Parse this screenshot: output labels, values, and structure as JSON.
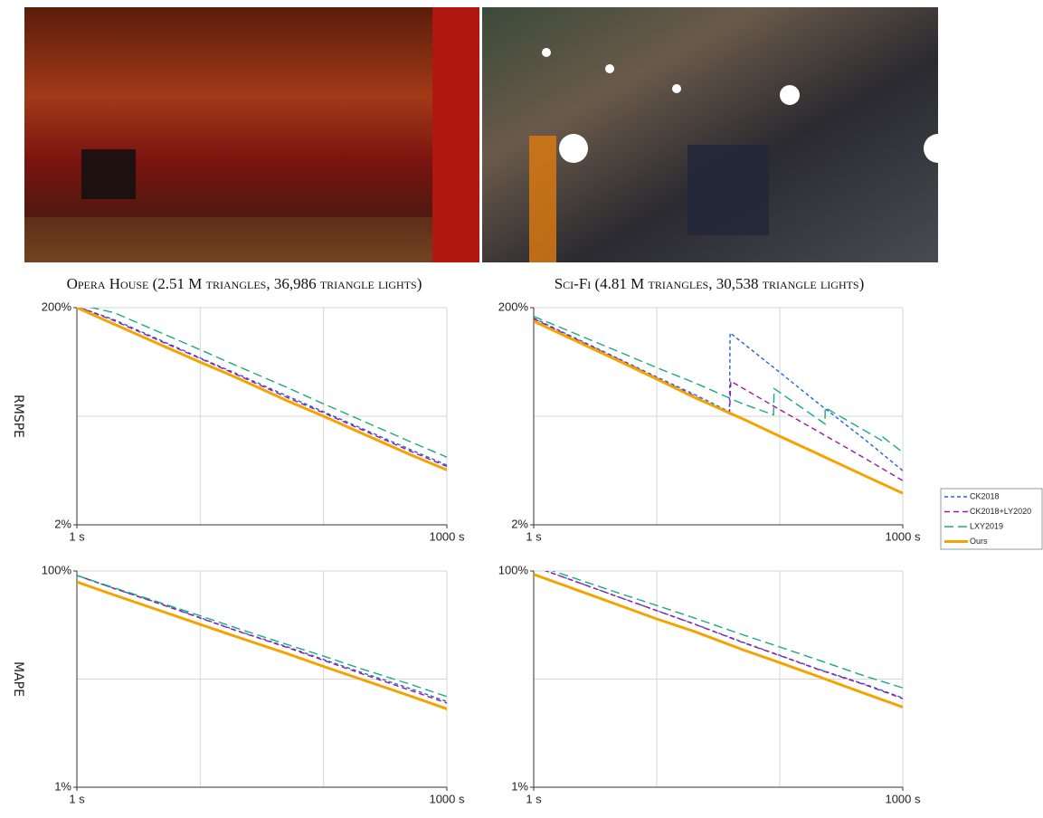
{
  "images": [
    {
      "caption": "Opera House (2.51 M triangles, 36,986 triangle lights)"
    },
    {
      "caption": "Sci-Fi (4.81 M triangles, 30,538 triangle lights)"
    }
  ],
  "chart_data": [
    {
      "type": "line",
      "ylabel": "RMSPE",
      "xlog": true,
      "ylog": true,
      "xlim": [
        1,
        1000
      ],
      "ylim": [
        2,
        200
      ],
      "xticks": [
        {
          "value": 1,
          "label": "1 s"
        },
        {
          "value": 1000,
          "label": "1000 s"
        }
      ],
      "yticks": [
        {
          "value": 2,
          "label": "2%"
        },
        {
          "value": 200,
          "label": "200%"
        }
      ],
      "xgrid": [
        10,
        100
      ],
      "ygrid": [
        20
      ],
      "x": [
        1,
        2,
        5,
        10,
        20,
        50,
        100,
        200,
        500,
        1000
      ],
      "series": [
        {
          "name": "CK2018",
          "color": "#1f66e0",
          "dash": "4,3",
          "width": 1.4,
          "values": [
            205,
            155,
            98,
            69,
            49,
            31,
            22,
            15.6,
            9.9,
            7.1
          ]
        },
        {
          "name": "CK2018+LY2020",
          "color": "#9b1a9b",
          "dash": "6,4",
          "width": 1.4,
          "values": [
            205,
            152,
            96,
            68,
            48,
            30,
            21.5,
            15.2,
            9.6,
            6.9
          ]
        },
        {
          "name": "LXY2019",
          "color": "#1ea882",
          "dash": "10,5",
          "width": 1.4,
          "values": [
            215,
            180,
            115,
            82,
            58,
            37,
            26,
            18.5,
            11.7,
            8.4
          ]
        },
        {
          "name": "Ours",
          "color": "#f5a300",
          "dash": "none",
          "width": 3,
          "values": [
            200,
            141,
            89,
            63,
            45,
            28,
            20,
            14.1,
            8.9,
            6.4
          ]
        }
      ]
    },
    {
      "type": "line",
      "xlog": true,
      "ylog": true,
      "legend": "right",
      "xlim": [
        1,
        1000
      ],
      "ylim": [
        2,
        200
      ],
      "xticks": [
        {
          "value": 1,
          "label": "1 s"
        },
        {
          "value": 1000,
          "label": "1000 s"
        }
      ],
      "yticks": [
        {
          "value": 2,
          "label": "2%"
        },
        {
          "value": 200,
          "label": "200%"
        }
      ],
      "xgrid": [
        10,
        100
      ],
      "ygrid": [
        20
      ],
      "series": [
        {
          "name": "CK2018",
          "color": "#1f66e0",
          "dash": "4,3",
          "width": 1.4,
          "x": [
            1,
            2,
            5,
            10,
            20,
            39,
            39.5,
            100,
            200,
            500,
            1000
          ],
          "values": [
            160,
            110,
            67,
            46,
            32,
            22,
            117,
            50.7,
            27,
            12,
            6.3
          ]
        },
        {
          "name": "CK2018+LY2020",
          "color": "#9b1a9b",
          "dash": "6,4",
          "width": 1.4,
          "x": [
            1,
            2,
            5,
            10,
            20,
            39,
            40,
            100,
            200,
            500,
            1000
          ],
          "values": [
            158,
            108,
            66,
            45,
            31,
            21,
            42,
            23,
            14.7,
            8.1,
            5.1
          ]
        },
        {
          "name": "LXY2019",
          "color": "#1ea882",
          "dash": "10,5",
          "width": 1.4,
          "x": [
            1,
            2,
            5,
            10,
            20,
            50,
            89,
            90,
            233,
            234,
            680,
            681,
            1000
          ],
          "values": [
            166,
            120,
            78,
            56,
            41,
            26,
            20.6,
            36,
            17,
            24,
            11.9,
            13,
            9.3
          ]
        },
        {
          "name": "Ours",
          "color": "#f5a300",
          "dash": "none",
          "width": 3,
          "x": [
            1,
            2,
            5,
            10,
            20,
            50,
            100,
            200,
            500,
            1000
          ],
          "values": [
            150,
            104,
            64,
            44,
            30,
            18.9,
            13.1,
            9.1,
            5.6,
            3.9
          ]
        }
      ]
    },
    {
      "type": "line",
      "ylabel": "MAPE",
      "xlog": true,
      "ylog": true,
      "xlim": [
        1,
        1000
      ],
      "ylim": [
        1,
        100
      ],
      "xticks": [
        {
          "value": 1,
          "label": "1 s"
        },
        {
          "value": 1000,
          "label": "1000 s"
        }
      ],
      "yticks": [
        {
          "value": 1,
          "label": "1%"
        },
        {
          "value": 100,
          "label": "100%"
        }
      ],
      "xgrid": [
        10,
        100
      ],
      "ygrid": [
        10
      ],
      "x": [
        1,
        2,
        5,
        10,
        20,
        50,
        100,
        200,
        500,
        1000
      ],
      "series": [
        {
          "name": "CK2018",
          "color": "#1f66e0",
          "dash": "4,3",
          "width": 1.4,
          "values": [
            91,
            69,
            49,
            37,
            28,
            20,
            15.2,
            11.6,
            8.2,
            6.2
          ]
        },
        {
          "name": "CK2018+LY2020",
          "color": "#9b1a9b",
          "dash": "6,4",
          "width": 1.4,
          "values": [
            91,
            69,
            48.5,
            36.7,
            27.8,
            19.7,
            14.9,
            11.3,
            7.9,
            6.0
          ]
        },
        {
          "name": "LXY2019",
          "color": "#1ea882",
          "dash": "10,5",
          "width": 1.4,
          "values": [
            91,
            70,
            50,
            38.5,
            29.5,
            21,
            16.3,
            12.5,
            9,
            6.9
          ]
        },
        {
          "name": "Ours",
          "color": "#f5a300",
          "dash": "none",
          "width": 3,
          "values": [
            79,
            60,
            42,
            32,
            24.5,
            17.3,
            13.1,
            10,
            7,
            5.3
          ]
        }
      ]
    },
    {
      "type": "line",
      "xlog": true,
      "ylog": true,
      "xlim": [
        1,
        1000
      ],
      "ylim": [
        1,
        100
      ],
      "xticks": [
        {
          "value": 1,
          "label": "1 s"
        },
        {
          "value": 1000,
          "label": "1000 s"
        }
      ],
      "yticks": [
        {
          "value": 1,
          "label": "1%"
        },
        {
          "value": 100,
          "label": "100%"
        }
      ],
      "xgrid": [
        10,
        100
      ],
      "ygrid": [
        10
      ],
      "x": [
        1,
        2,
        5,
        10,
        20,
        50,
        100,
        200,
        500,
        1000
      ],
      "series": [
        {
          "name": "CK2018",
          "color": "#1f66e0",
          "dash": "4,3",
          "width": 1.4,
          "values": [
            110,
            83,
            57,
            43,
            32.5,
            22,
            16.6,
            12.5,
            8.9,
            6.7
          ]
        },
        {
          "name": "CK2018+LY2020",
          "color": "#9b1a9b",
          "dash": "6,4",
          "width": 1.4,
          "values": [
            110,
            83,
            57,
            43,
            32.4,
            21.8,
            16.5,
            12.4,
            8.8,
            6.6
          ]
        },
        {
          "name": "LXY2019",
          "color": "#1ea882",
          "dash": "10,5",
          "width": 1.4,
          "values": [
            115,
            88,
            62,
            48,
            36.9,
            25.7,
            19.8,
            15.2,
            10.6,
            8.3
          ]
        },
        {
          "name": "Ours",
          "color": "#f5a300",
          "dash": "none",
          "width": 3,
          "values": [
            93,
            70,
            48,
            36,
            27.7,
            18.7,
            14.2,
            10.7,
            7.3,
            5.5
          ]
        }
      ]
    }
  ]
}
